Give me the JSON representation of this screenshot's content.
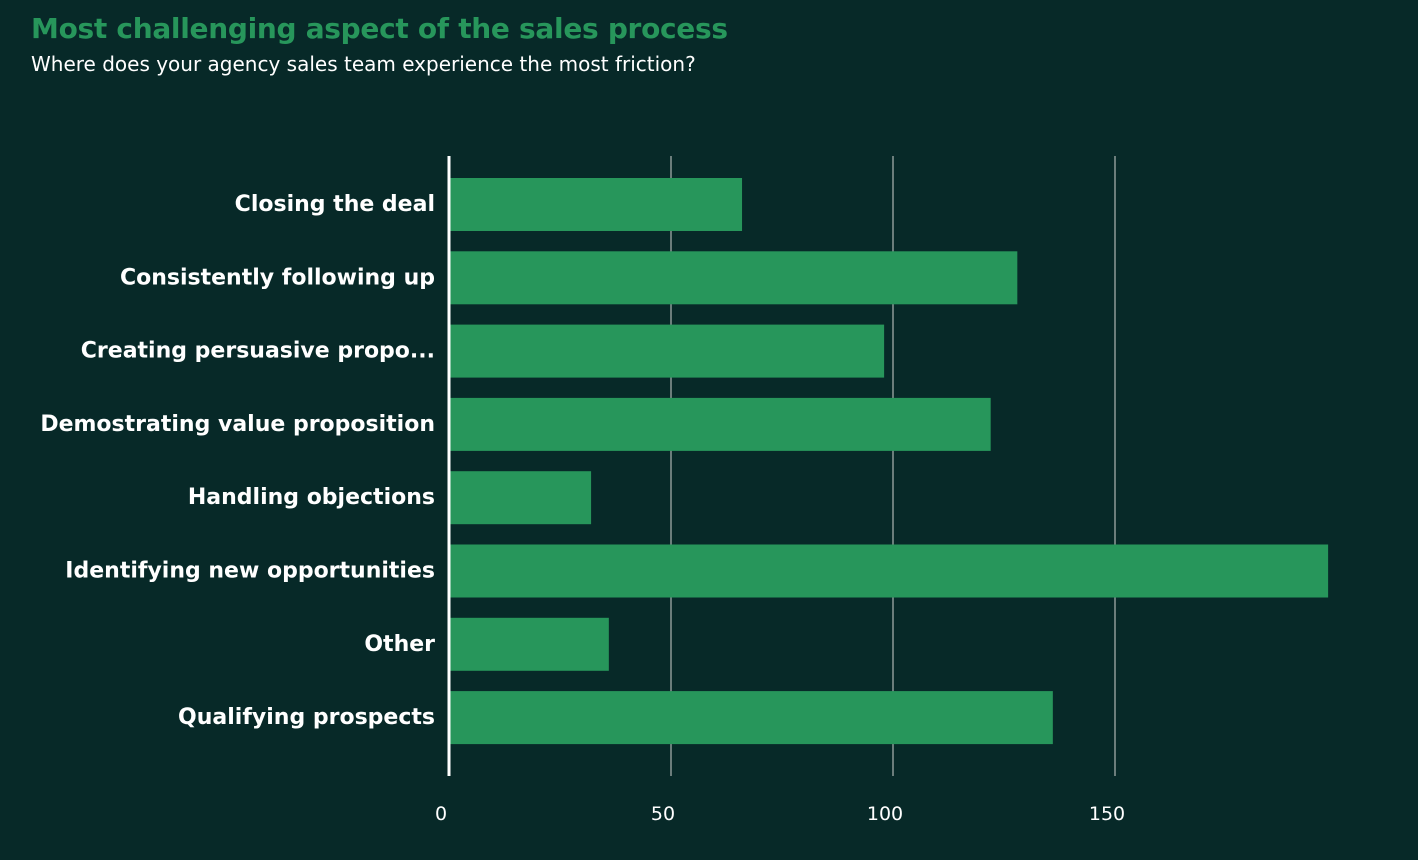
{
  "title": "Most challenging aspect of the sales process",
  "subtitle": "Where does your agency sales team experience the most friction?",
  "colors": {
    "background": "#072928",
    "bar": "#27965b",
    "title": "#27965b",
    "text": "#ffffff",
    "grid": "#6b7d7b",
    "axis": "#ffffff"
  },
  "chart_data": {
    "type": "bar",
    "orientation": "horizontal",
    "categories": [
      "Closing the deal",
      "Consistently following up",
      "Creating persuasive propo...",
      "Demostrating value proposition",
      "Handling objections",
      "Identifying new opportunities",
      "Other",
      "Qualifying prospects"
    ],
    "values": [
      66,
      128,
      98,
      122,
      32,
      198,
      36,
      136
    ],
    "xlim": [
      0,
      200
    ],
    "xticks": [
      0,
      50,
      100,
      150
    ],
    "tick_labels": [
      "0",
      "50",
      "100",
      "150"
    ],
    "grid": true,
    "legend": "none"
  }
}
